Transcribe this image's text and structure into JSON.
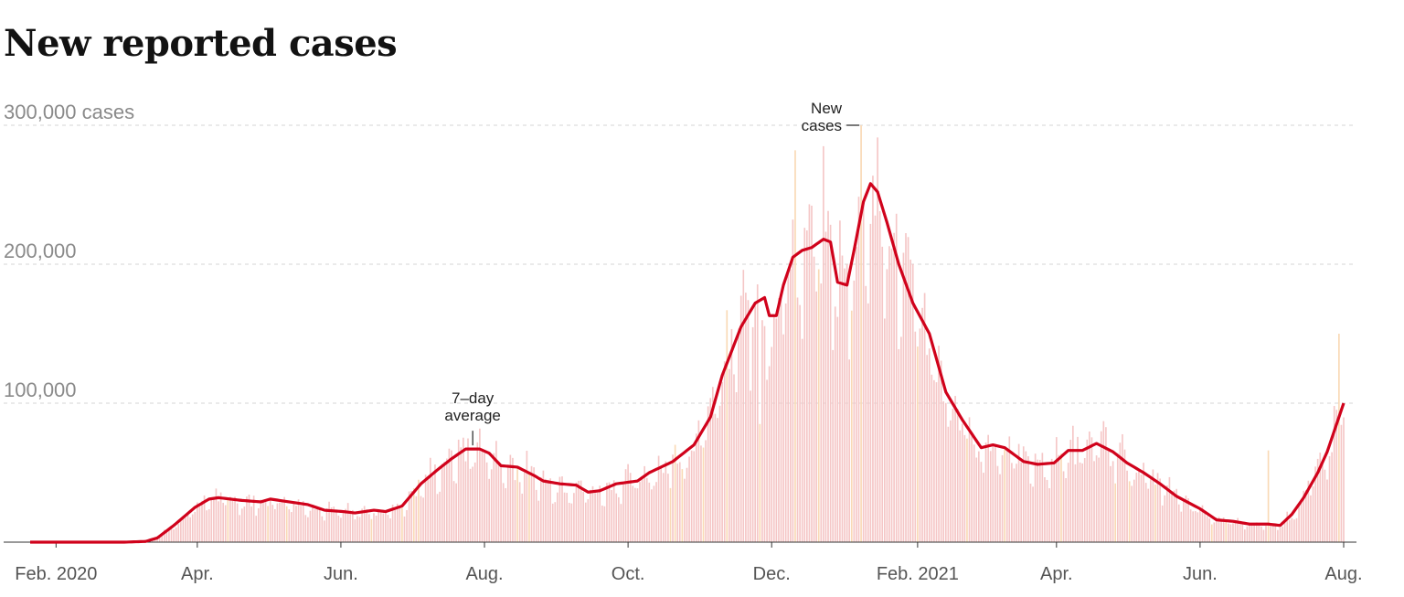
{
  "chart_data": {
    "type": "bar",
    "title": "New reported cases",
    "y_ticks": [
      {
        "value": 100000,
        "label": "100,000"
      },
      {
        "value": 200000,
        "label": "200,000"
      },
      {
        "value": 300000,
        "label": "300,000 cases"
      }
    ],
    "ylim": [
      0,
      300000
    ],
    "x_start": "2020-01-21",
    "x_end": "2021-08-01",
    "x_ticks": [
      {
        "date": "2020-02-01",
        "label": "Feb. 2020"
      },
      {
        "date": "2020-04-01",
        "label": "Apr."
      },
      {
        "date": "2020-06-01",
        "label": "Jun."
      },
      {
        "date": "2020-08-01",
        "label": "Aug."
      },
      {
        "date": "2020-10-01",
        "label": "Oct."
      },
      {
        "date": "2020-12-01",
        "label": "Dec."
      },
      {
        "date": "2021-02-01",
        "label": "Feb. 2021"
      },
      {
        "date": "2021-04-01",
        "label": "Apr."
      },
      {
        "date": "2021-06-01",
        "label": "Jun."
      },
      {
        "date": "2021-08-01",
        "label": "Aug."
      }
    ],
    "grid": true,
    "series": [
      {
        "name": "7-day average",
        "kind": "line",
        "color": "#d0021b",
        "points": [
          [
            "2020-01-21",
            0
          ],
          [
            "2020-03-01",
            0
          ],
          [
            "2020-03-10",
            500
          ],
          [
            "2020-03-15",
            3000
          ],
          [
            "2020-03-22",
            12000
          ],
          [
            "2020-03-31",
            25000
          ],
          [
            "2020-04-06",
            31000
          ],
          [
            "2020-04-10",
            32000
          ],
          [
            "2020-04-20",
            30000
          ],
          [
            "2020-04-28",
            29000
          ],
          [
            "2020-05-02",
            31000
          ],
          [
            "2020-05-10",
            29000
          ],
          [
            "2020-05-18",
            27000
          ],
          [
            "2020-05-25",
            23000
          ],
          [
            "2020-06-02",
            22000
          ],
          [
            "2020-06-07",
            21000
          ],
          [
            "2020-06-15",
            23000
          ],
          [
            "2020-06-20",
            22000
          ],
          [
            "2020-06-27",
            26000
          ],
          [
            "2020-07-05",
            42000
          ],
          [
            "2020-07-12",
            52000
          ],
          [
            "2020-07-18",
            60000
          ],
          [
            "2020-07-24",
            67000
          ],
          [
            "2020-07-30",
            67000
          ],
          [
            "2020-08-03",
            64000
          ],
          [
            "2020-08-08",
            55000
          ],
          [
            "2020-08-15",
            54000
          ],
          [
            "2020-08-22",
            48000
          ],
          [
            "2020-08-26",
            44000
          ],
          [
            "2020-09-02",
            42000
          ],
          [
            "2020-09-09",
            41000
          ],
          [
            "2020-09-14",
            36000
          ],
          [
            "2020-09-19",
            37000
          ],
          [
            "2020-09-26",
            42000
          ],
          [
            "2020-10-05",
            44000
          ],
          [
            "2020-10-10",
            50000
          ],
          [
            "2020-10-20",
            58000
          ],
          [
            "2020-10-29",
            70000
          ],
          [
            "2020-11-05",
            90000
          ],
          [
            "2020-11-10",
            120000
          ],
          [
            "2020-11-18",
            155000
          ],
          [
            "2020-11-24",
            172000
          ],
          [
            "2020-11-28",
            176000
          ],
          [
            "2020-11-30",
            163000
          ],
          [
            "2020-12-03",
            163000
          ],
          [
            "2020-12-06",
            185000
          ],
          [
            "2020-12-10",
            205000
          ],
          [
            "2020-12-14",
            210000
          ],
          [
            "2020-12-18",
            212000
          ],
          [
            "2020-12-23",
            218000
          ],
          [
            "2020-12-26",
            216000
          ],
          [
            "2020-12-29",
            187000
          ],
          [
            "2021-01-02",
            185000
          ],
          [
            "2021-01-05",
            210000
          ],
          [
            "2021-01-09",
            245000
          ],
          [
            "2021-01-12",
            258000
          ],
          [
            "2021-01-15",
            252000
          ],
          [
            "2021-01-19",
            230000
          ],
          [
            "2021-01-24",
            200000
          ],
          [
            "2021-01-30",
            172000
          ],
          [
            "2021-02-06",
            150000
          ],
          [
            "2021-02-13",
            108000
          ],
          [
            "2021-02-20",
            88000
          ],
          [
            "2021-02-28",
            68000
          ],
          [
            "2021-03-05",
            70000
          ],
          [
            "2021-03-10",
            68000
          ],
          [
            "2021-03-18",
            58000
          ],
          [
            "2021-03-24",
            56000
          ],
          [
            "2021-03-31",
            57000
          ],
          [
            "2021-04-06",
            66000
          ],
          [
            "2021-04-12",
            66000
          ],
          [
            "2021-04-18",
            71000
          ],
          [
            "2021-04-25",
            65000
          ],
          [
            "2021-05-01",
            57000
          ],
          [
            "2021-05-08",
            50000
          ],
          [
            "2021-05-15",
            42000
          ],
          [
            "2021-05-22",
            33000
          ],
          [
            "2021-06-01",
            24000
          ],
          [
            "2021-06-08",
            16000
          ],
          [
            "2021-06-15",
            15000
          ],
          [
            "2021-06-22",
            13000
          ],
          [
            "2021-06-30",
            13000
          ],
          [
            "2021-07-05",
            12000
          ],
          [
            "2021-07-10",
            20000
          ],
          [
            "2021-07-15",
            32000
          ],
          [
            "2021-07-21",
            50000
          ],
          [
            "2021-07-25",
            65000
          ],
          [
            "2021-07-29",
            85000
          ],
          [
            "2021-08-01",
            100000
          ]
        ]
      },
      {
        "name": "New cases",
        "kind": "bar",
        "color": "#f5c6c6",
        "highlight_color": "#f9d9b5",
        "values_note": "daily bars fluctuate around the 7-day average",
        "outliers": [
          [
            "2020-11-26",
            85000
          ],
          [
            "2020-12-11",
            282000
          ],
          [
            "2021-01-08",
            300000
          ],
          [
            "2021-06-30",
            66000
          ],
          [
            "2021-07-30",
            150000
          ]
        ]
      }
    ],
    "annotations": [
      {
        "target": "7-day average",
        "lines": [
          "7–day",
          "average"
        ],
        "date": "2020-07-27",
        "value": 67000
      },
      {
        "target": "New cases",
        "lines": [
          "New",
          "cases"
        ],
        "date": "2021-01-08",
        "value": 300000
      }
    ]
  }
}
